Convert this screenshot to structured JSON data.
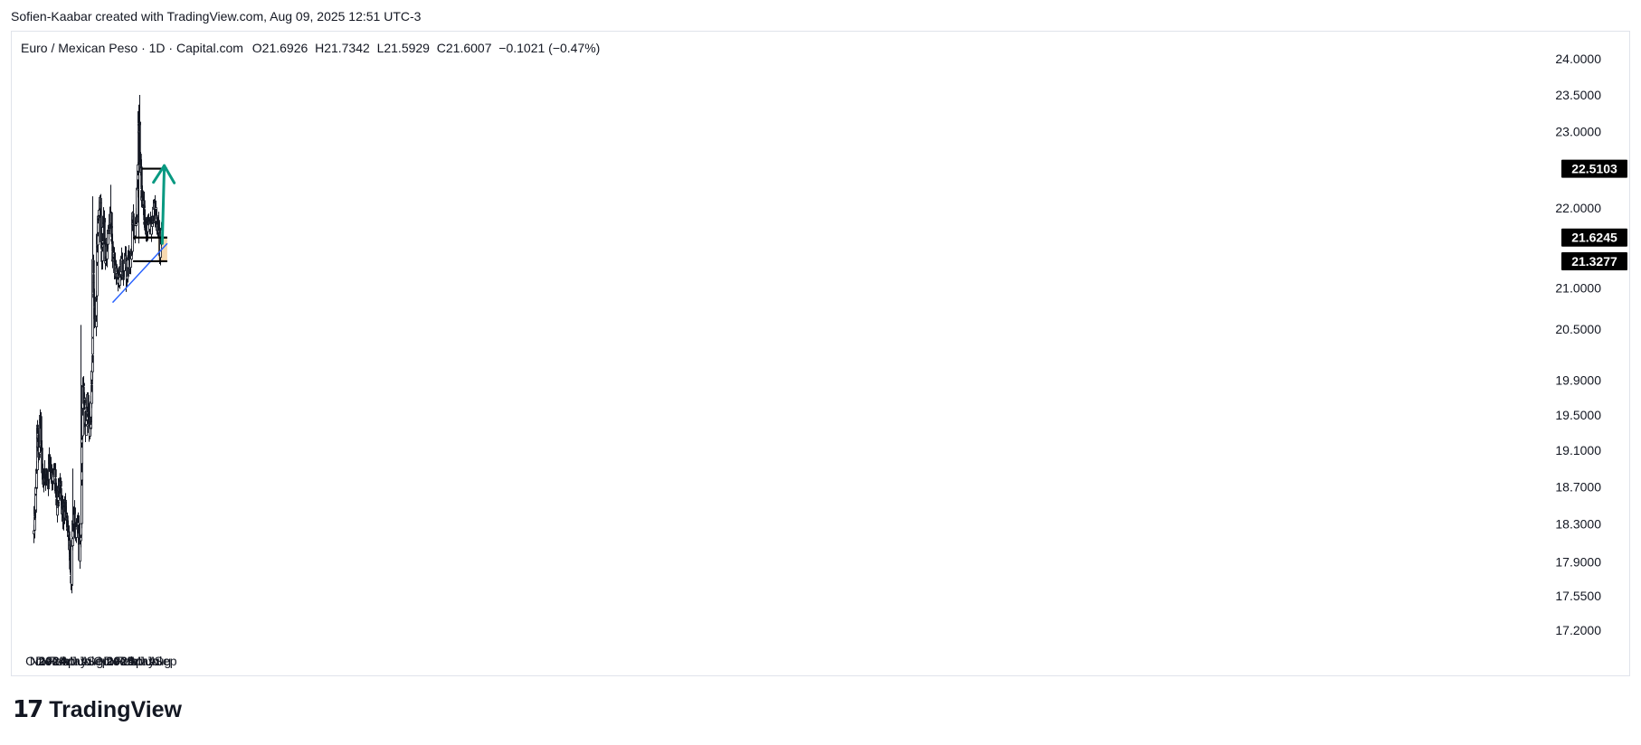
{
  "header": {
    "attribution": "Sofien-Kaabar created with TradingView.com, Aug 09, 2025 12:51 UTC-3"
  },
  "symbol": {
    "name": "Euro / Mexican Peso",
    "separator": "·",
    "timeframe": "1D",
    "source": "Capital.com",
    "open": "O21.6926",
    "high": "H21.7342",
    "low": "L21.5929",
    "close": "C21.6007",
    "change": "−0.1021 (−0.47%)"
  },
  "brand": {
    "name": "TradingView",
    "logo_text": "17"
  },
  "colors": {
    "candle": "#131722",
    "trendline": "#2962ff",
    "arrow": "#089981",
    "zone": "#f7d9b0",
    "level": "#000000",
    "grid": "#e0e3eb"
  },
  "chart_data": {
    "type": "candlestick",
    "title": "Euro / Mexican Peso · 1D · Capital.com",
    "y_scale": "log",
    "ylim": [
      17.05,
      24.2
    ],
    "y_ticks": [
      "24.0000",
      "23.5000",
      "23.0000",
      "22.0000",
      "21.0000",
      "20.5000",
      "19.9000",
      "19.5000",
      "19.1000",
      "18.7000",
      "18.3000",
      "17.9000",
      "17.5500",
      "17.2000"
    ],
    "x_ticks": [
      {
        "label": "Oct",
        "date": "2023-10-01",
        "bold": false
      },
      {
        "label": "Nov",
        "date": "2023-11-01",
        "bold": false
      },
      {
        "label": "Dec",
        "date": "2023-12-01",
        "bold": false
      },
      {
        "label": "2024",
        "date": "2024-01-01",
        "bold": true
      },
      {
        "label": "Feb",
        "date": "2024-02-01",
        "bold": false
      },
      {
        "label": "Mar",
        "date": "2024-03-01",
        "bold": false
      },
      {
        "label": "Apr",
        "date": "2024-04-01",
        "bold": false
      },
      {
        "label": "May",
        "date": "2024-05-01",
        "bold": false
      },
      {
        "label": "Jun",
        "date": "2024-06-01",
        "bold": false
      },
      {
        "label": "Jul",
        "date": "2024-07-01",
        "bold": false
      },
      {
        "label": "Aug",
        "date": "2024-08-01",
        "bold": false
      },
      {
        "label": "Sep",
        "date": "2024-09-01",
        "bold": false
      },
      {
        "label": "Oct",
        "date": "2024-10-01",
        "bold": false
      },
      {
        "label": "Nov",
        "date": "2024-11-01",
        "bold": false
      },
      {
        "label": "Dec",
        "date": "2024-12-01",
        "bold": false
      },
      {
        "label": "2025",
        "date": "2025-01-01",
        "bold": true
      },
      {
        "label": "Feb",
        "date": "2025-02-01",
        "bold": false
      },
      {
        "label": "Mar",
        "date": "2025-03-01",
        "bold": false
      },
      {
        "label": "Apr",
        "date": "2025-04-01",
        "bold": false
      },
      {
        "label": "May",
        "date": "2025-05-01",
        "bold": false
      },
      {
        "label": "Jun",
        "date": "2025-06-01",
        "bold": false
      },
      {
        "label": "Jul",
        "date": "2025-07-01",
        "bold": false
      },
      {
        "label": "Aug",
        "date": "2025-08-01",
        "bold": false
      },
      {
        "label": "Sep",
        "date": "2025-09-01",
        "bold": false
      }
    ],
    "price_path": [
      [
        "2023-09-22",
        18.2
      ],
      [
        "2023-10-05",
        18.8
      ],
      [
        "2023-10-12",
        19.4
      ],
      [
        "2023-10-18",
        19.0
      ],
      [
        "2023-10-26",
        19.55
      ],
      [
        "2023-11-03",
        19.0
      ],
      [
        "2023-11-10",
        18.75
      ],
      [
        "2023-11-20",
        18.85
      ],
      [
        "2023-12-05",
        18.75
      ],
      [
        "2023-12-15",
        19.0
      ],
      [
        "2023-12-28",
        18.8
      ],
      [
        "2024-01-15",
        18.8
      ],
      [
        "2024-01-25",
        18.45
      ],
      [
        "2024-02-05",
        18.8
      ],
      [
        "2024-02-15",
        18.55
      ],
      [
        "2024-02-25",
        18.35
      ],
      [
        "2024-03-08",
        18.5
      ],
      [
        "2024-03-20",
        18.3
      ],
      [
        "2024-04-01",
        18.0
      ],
      [
        "2024-04-12",
        17.65
      ],
      [
        "2024-04-16",
        18.2
      ],
      [
        "2024-04-25",
        18.4
      ],
      [
        "2024-05-05",
        18.15
      ],
      [
        "2024-05-15",
        18.3
      ],
      [
        "2024-05-24",
        18.0
      ],
      [
        "2024-05-31",
        18.3
      ],
      [
        "2024-06-04",
        19.0
      ],
      [
        "2024-06-12",
        19.9
      ],
      [
        "2024-06-20",
        19.6
      ],
      [
        "2024-06-28",
        19.3
      ],
      [
        "2024-07-05",
        19.7
      ],
      [
        "2024-07-18",
        19.25
      ],
      [
        "2024-07-26",
        19.6
      ],
      [
        "2024-08-02",
        20.3
      ],
      [
        "2024-08-05",
        21.3
      ],
      [
        "2024-08-09",
        20.8
      ],
      [
        "2024-08-20",
        20.6
      ],
      [
        "2024-08-28",
        21.6
      ],
      [
        "2024-09-06",
        22.0
      ],
      [
        "2024-09-12",
        22.05
      ],
      [
        "2024-09-20",
        21.4
      ],
      [
        "2024-10-01",
        21.9
      ],
      [
        "2024-10-10",
        21.3
      ],
      [
        "2024-10-20",
        21.5
      ],
      [
        "2024-10-30",
        21.8
      ],
      [
        "2024-11-08",
        21.9
      ],
      [
        "2024-11-18",
        21.4
      ],
      [
        "2024-11-28",
        21.3
      ],
      [
        "2024-12-10",
        21.2
      ],
      [
        "2024-12-22",
        21.0
      ],
      [
        "2025-01-03",
        21.35
      ],
      [
        "2025-01-15",
        21.1
      ],
      [
        "2025-01-25",
        21.4
      ],
      [
        "2025-02-03",
        21.15
      ],
      [
        "2025-02-10",
        21.35
      ],
      [
        "2025-02-25",
        21.3
      ],
      [
        "2025-03-05",
        21.9
      ],
      [
        "2025-03-15",
        21.7
      ],
      [
        "2025-03-25",
        21.8
      ],
      [
        "2025-04-03",
        22.4
      ],
      [
        "2025-04-09",
        23.2
      ],
      [
        "2025-04-15",
        22.7
      ],
      [
        "2025-04-22",
        22.2
      ],
      [
        "2025-05-01",
        22.1
      ],
      [
        "2025-05-10",
        21.8
      ],
      [
        "2025-05-20",
        21.7
      ],
      [
        "2025-06-01",
        21.85
      ],
      [
        "2025-06-15",
        21.75
      ],
      [
        "2025-06-28",
        22.0
      ],
      [
        "2025-07-05",
        21.95
      ],
      [
        "2025-07-15",
        21.8
      ],
      [
        "2025-07-25",
        21.7
      ],
      [
        "2025-07-31",
        21.45
      ],
      [
        "2025-08-04",
        21.75
      ],
      [
        "2025-08-08",
        21.6
      ]
    ],
    "spikes": [
      {
        "date": "2024-04-19",
        "high": 18.9
      },
      {
        "date": "2024-05-30",
        "high": 20.55
      },
      {
        "date": "2024-08-05",
        "high": 22.15
      },
      {
        "date": "2024-11-06",
        "high": 22.3
      },
      {
        "date": "2025-04-11",
        "high": 23.5
      },
      {
        "date": "2025-04-08",
        "low": 21.55
      },
      {
        "date": "2025-01-29",
        "low": 20.95
      }
    ],
    "price_labels": [
      {
        "value": 22.5103,
        "text": "22.5103"
      },
      {
        "value": 21.6245,
        "text": "21.6245"
      },
      {
        "value": 21.3277,
        "text": "21.3277"
      }
    ],
    "levels": [
      {
        "price": 22.5103,
        "from": "2025-04-27",
        "to": "2025-09-10"
      },
      {
        "price": 21.6245,
        "from": "2025-03-10",
        "to": "2025-09-10"
      },
      {
        "price": 21.3277,
        "from": "2025-03-10",
        "to": "2025-09-10"
      }
    ],
    "trendline": {
      "from": [
        "2024-11-20",
        20.82
      ],
      "to": [
        "2025-09-10",
        21.55
      ]
    },
    "zone": {
      "from": "2025-07-22",
      "to": "2025-09-10",
      "top": 21.62,
      "bottom": 21.33
    },
    "arrow": {
      "from": [
        "2025-08-14",
        21.55
      ],
      "to": [
        "2025-08-25",
        22.55
      ]
    }
  }
}
